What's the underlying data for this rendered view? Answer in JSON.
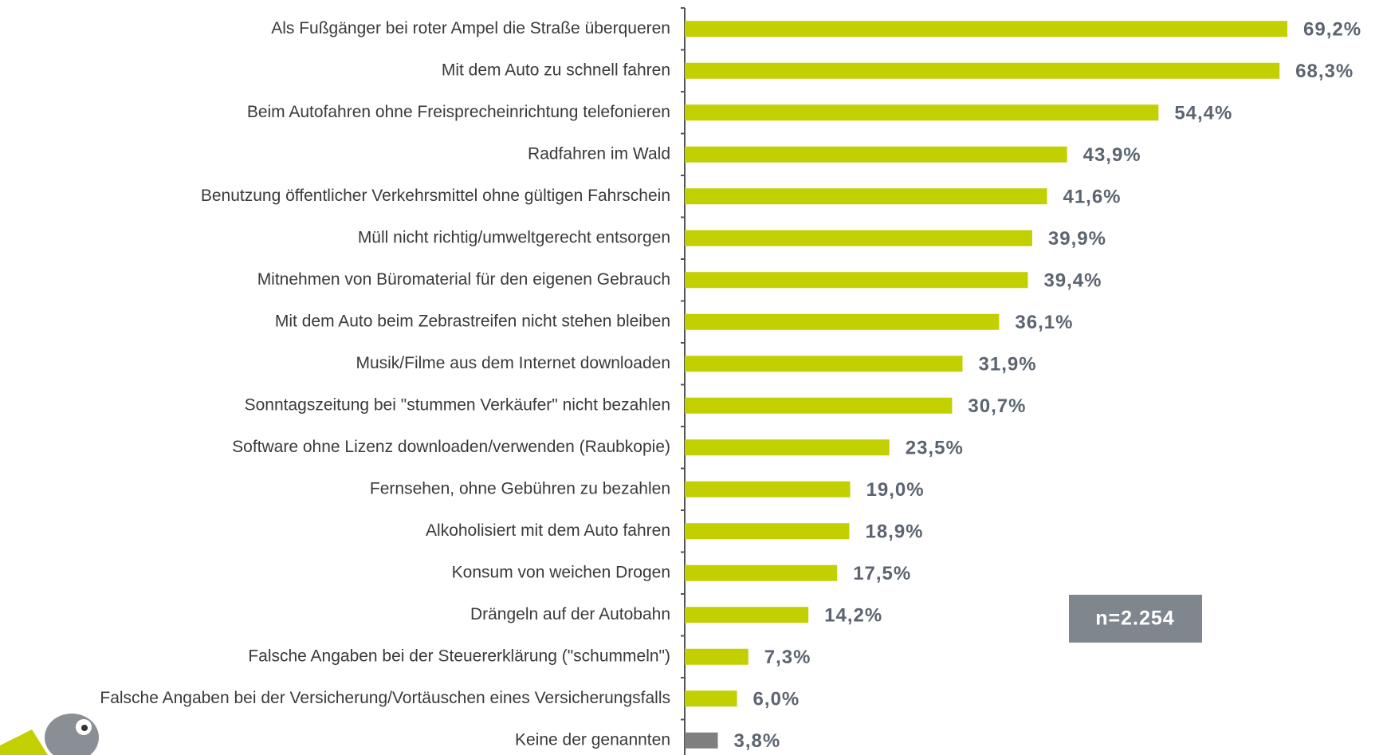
{
  "chart_data": {
    "type": "bar",
    "orientation": "horizontal",
    "categories": [
      "Als Fußgänger bei roter Ampel die Straße überqueren",
      "Mit dem Auto zu schnell fahren",
      "Beim Autofahren ohne Freisprecheinrichtung telefonieren",
      "Radfahren im Wald",
      "Benutzung öffentlicher Verkehrsmittel ohne gültigen Fahrschein",
      "Müll nicht richtig/umweltgerecht entsorgen",
      "Mitnehmen von Büromaterial für den eigenen Gebrauch",
      "Mit dem Auto beim Zebrastreifen nicht stehen bleiben",
      "Musik/Filme aus dem Internet downloaden",
      "Sonntagszeitung bei \"stummen Verkäufer\" nicht bezahlen",
      "Software ohne Lizenz downloaden/verwenden (Raubkopie)",
      "Fernsehen, ohne Gebühren zu bezahlen",
      "Alkoholisiert mit dem Auto fahren",
      "Konsum von weichen Drogen",
      "Drängeln auf der Autobahn",
      "Falsche Angaben bei der Steuererklärung (\"schummeln\")",
      "Falsche Angaben bei der Versicherung/Vortäuschen eines Versicherungsfalls",
      "Keine der genannten"
    ],
    "values": [
      69.2,
      68.3,
      54.4,
      43.9,
      41.6,
      39.9,
      39.4,
      36.1,
      31.9,
      30.7,
      23.5,
      19.0,
      18.9,
      17.5,
      14.2,
      7.3,
      6.0,
      3.8
    ],
    "value_labels": [
      "69,2%",
      "68,3%",
      "54,4%",
      "43,9%",
      "41,6%",
      "39,9%",
      "39,4%",
      "36,1%",
      "31,9%",
      "30,7%",
      "23,5%",
      "19,0%",
      "18,9%",
      "17,5%",
      "14,2%",
      "7,3%",
      "6,0%",
      "3,8%"
    ],
    "colors": [
      "#c2cf00",
      "#c2cf00",
      "#c2cf00",
      "#c2cf00",
      "#c2cf00",
      "#c2cf00",
      "#c2cf00",
      "#c2cf00",
      "#c2cf00",
      "#c2cf00",
      "#c2cf00",
      "#c2cf00",
      "#c2cf00",
      "#c2cf00",
      "#c2cf00",
      "#c2cf00",
      "#c2cf00",
      "#7f7f7f"
    ],
    "xlim": [
      0,
      80
    ],
    "annotation": "n=2.254"
  }
}
